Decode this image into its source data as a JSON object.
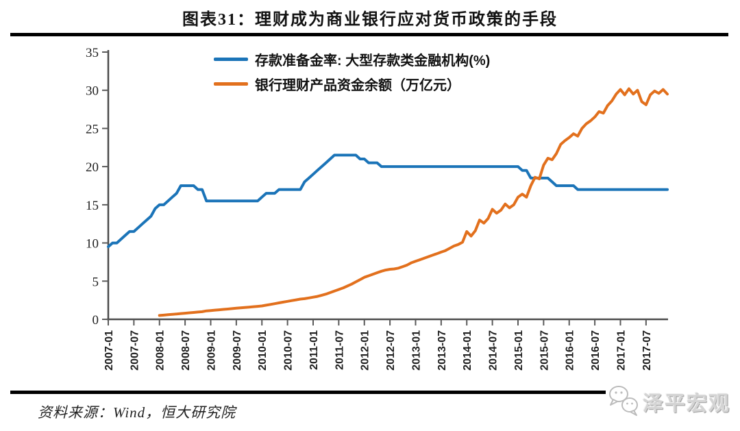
{
  "header": {
    "title": "图表31：理财成为商业银行应对货币政策的手段"
  },
  "footer": {
    "source": "资料来源：Wind，恒大研究院",
    "watermark": "泽平宏观",
    "watermark_icon": "speech-bubbles-icon"
  },
  "colors": {
    "series_blue": "#1B74B8",
    "series_orange": "#E2701D",
    "axis": "#4a4a4a",
    "tick": "#5a5a5a",
    "tick_label": "#1f1f1f",
    "rule_black": "#000000",
    "watermark_gray": "#d4d4d4"
  },
  "chart_data": {
    "type": "line",
    "title": "图表31：理财成为商业银行应对货币政策的手段",
    "xlabel": "",
    "ylabel": "",
    "ylim": [
      0,
      35
    ],
    "y_ticks": [
      0,
      5,
      10,
      15,
      20,
      25,
      30,
      35
    ],
    "grid": false,
    "legend_position": "top",
    "x_start": "2007-01",
    "x_months": 132,
    "x_tick_interval_months": 6,
    "x_tick_labels": [
      "2007-01",
      "2007-07",
      "2008-01",
      "2008-07",
      "2009-01",
      "2009-07",
      "2010-01",
      "2010-07",
      "2011-01",
      "2011-07",
      "2012-01",
      "2012-07",
      "2013-01",
      "2013-07",
      "2014-01",
      "2014-07",
      "2015-01",
      "2015-07",
      "2016-01",
      "2016-07",
      "2017-01",
      "2017-07"
    ],
    "series": [
      {
        "name": "存款准备金率: 大型存款类金融机构(%)",
        "color": "#1B74B8",
        "values": [
          9.5,
          10,
          10,
          10.5,
          11,
          11.5,
          11.5,
          12,
          12.5,
          13,
          13.5,
          14.5,
          15,
          15,
          15.5,
          16,
          16.5,
          17.5,
          17.5,
          17.5,
          17.5,
          17,
          17,
          15.5,
          15.5,
          15.5,
          15.5,
          15.5,
          15.5,
          15.5,
          15.5,
          15.5,
          15.5,
          15.5,
          15.5,
          15.5,
          16,
          16.5,
          16.5,
          16.5,
          17,
          17,
          17,
          17,
          17,
          17,
          18,
          18.5,
          19,
          19.5,
          20,
          20.5,
          21,
          21.5,
          21.5,
          21.5,
          21.5,
          21.5,
          21.5,
          21,
          21,
          20.5,
          20.5,
          20.5,
          20,
          20,
          20,
          20,
          20,
          20,
          20,
          20,
          20,
          20,
          20,
          20,
          20,
          20,
          20,
          20,
          20,
          20,
          20,
          20,
          20,
          20,
          20,
          20,
          20,
          20,
          20,
          20,
          20,
          20,
          20,
          20,
          20,
          19.5,
          19.5,
          18.5,
          18.5,
          18.5,
          18.5,
          18.5,
          18,
          17.5,
          17.5,
          17.5,
          17.5,
          17.5,
          17,
          17,
          17,
          17,
          17,
          17,
          17,
          17,
          17,
          17,
          17,
          17,
          17,
          17,
          17,
          17,
          17,
          17,
          17,
          17,
          17,
          17
        ]
      },
      {
        "name": "银行理财产品资金余额（万亿元）",
        "color": "#E2701D",
        "values": [
          null,
          null,
          null,
          null,
          null,
          null,
          null,
          null,
          null,
          null,
          null,
          null,
          0.5,
          0.55,
          0.6,
          0.65,
          0.7,
          0.75,
          0.8,
          0.85,
          0.9,
          0.95,
          1.0,
          1.1,
          1.15,
          1.2,
          1.25,
          1.3,
          1.35,
          1.4,
          1.45,
          1.5,
          1.55,
          1.6,
          1.65,
          1.7,
          1.75,
          1.85,
          1.95,
          2.05,
          2.15,
          2.25,
          2.35,
          2.45,
          2.55,
          2.65,
          2.7,
          2.8,
          2.9,
          3.0,
          3.15,
          3.3,
          3.5,
          3.7,
          3.9,
          4.1,
          4.35,
          4.6,
          4.9,
          5.2,
          5.5,
          5.7,
          5.9,
          6.1,
          6.3,
          6.45,
          6.55,
          6.6,
          6.7,
          6.9,
          7.1,
          7.4,
          7.6,
          7.8,
          8.0,
          8.2,
          8.4,
          8.6,
          8.8,
          9.0,
          9.3,
          9.6,
          9.8,
          10.1,
          11.5,
          10.9,
          11.6,
          13.0,
          12.6,
          13.2,
          14.4,
          13.9,
          14.3,
          15.1,
          14.6,
          15.0,
          16.0,
          16.4,
          16.0,
          17.5,
          18.6,
          18.4,
          20.2,
          21.1,
          20.9,
          21.7,
          22.9,
          23.4,
          23.8,
          24.3,
          24.0,
          25.0,
          25.6,
          26.0,
          26.5,
          27.2,
          27.0,
          28.0,
          28.6,
          29.5,
          30.1,
          29.4,
          30.2,
          29.5,
          30.0,
          28.5,
          28.1,
          29.4,
          29.9,
          29.6,
          30.1,
          29.5
        ]
      }
    ]
  }
}
